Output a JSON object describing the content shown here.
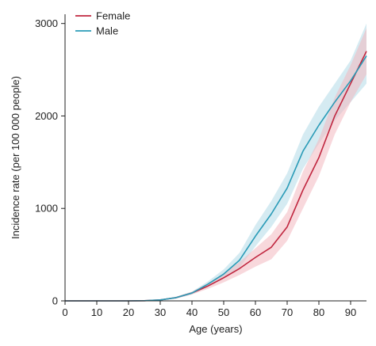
{
  "chart_data": {
    "type": "line",
    "title": "",
    "xlabel": "Age (years)",
    "ylabel": "Incidence rate (per 100 000 people)",
    "xlim": [
      0,
      95
    ],
    "ylim": [
      0,
      3100
    ],
    "x_ticks": [
      0,
      10,
      20,
      30,
      40,
      50,
      60,
      70,
      80,
      90
    ],
    "y_ticks": [
      0,
      1000,
      2000,
      3000
    ],
    "grid": false,
    "legend_position": "top-left",
    "x": [
      0,
      5,
      10,
      15,
      20,
      25,
      30,
      35,
      40,
      45,
      50,
      55,
      60,
      65,
      70,
      75,
      80,
      85,
      90,
      95
    ],
    "series": [
      {
        "name": "Female",
        "color": "#c0263f",
        "band_color": "#f2b8c0",
        "values": [
          0,
          0,
          0,
          0,
          0,
          2,
          10,
          35,
          85,
          160,
          250,
          350,
          470,
          580,
          800,
          1200,
          1550,
          2000,
          2350,
          2700
        ],
        "lower": [
          0,
          0,
          0,
          0,
          0,
          0,
          5,
          25,
          70,
          130,
          200,
          280,
          370,
          450,
          650,
          1000,
          1350,
          1800,
          2150,
          2450
        ],
        "upper": [
          0,
          0,
          0,
          0,
          0,
          4,
          15,
          45,
          100,
          190,
          300,
          420,
          570,
          720,
          960,
          1400,
          1750,
          2200,
          2550,
          2950
        ]
      },
      {
        "name": "Male",
        "color": "#2a9bb7",
        "band_color": "#b3dbe8",
        "values": [
          0,
          0,
          0,
          0,
          0,
          2,
          10,
          35,
          85,
          180,
          290,
          440,
          700,
          940,
          1220,
          1620,
          1900,
          2150,
          2380,
          2650
        ],
        "lower": [
          0,
          0,
          0,
          0,
          0,
          0,
          5,
          25,
          70,
          150,
          240,
          360,
          590,
          800,
          1050,
          1430,
          1700,
          1950,
          2150,
          2350
        ],
        "upper": [
          0,
          0,
          0,
          0,
          0,
          4,
          15,
          45,
          100,
          210,
          340,
          520,
          820,
          1080,
          1380,
          1800,
          2100,
          2350,
          2600,
          3000
        ]
      }
    ]
  }
}
